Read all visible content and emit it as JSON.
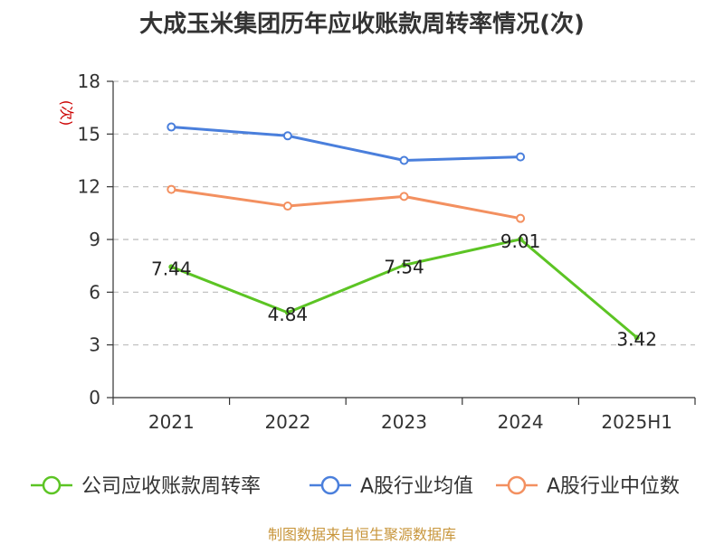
{
  "chart_data": {
    "type": "line",
    "title": "大成玉米集团历年应收账款周转率情况(次)",
    "ylabel": "(次)",
    "xlabel": "",
    "categories": [
      "2021",
      "2022",
      "2023",
      "2024",
      "2025H1"
    ],
    "ylim": [
      0,
      18
    ],
    "yticks": [
      0,
      3,
      6,
      9,
      12,
      15,
      18
    ],
    "grid": true,
    "legend_position": "bottom",
    "series": [
      {
        "name": "公司应收账款周转率",
        "color": "#5cc424",
        "values": [
          7.44,
          4.84,
          7.54,
          9.01,
          3.42
        ],
        "labels": [
          "7.44",
          "4.84",
          "7.54",
          "9.01",
          "3.42"
        ]
      },
      {
        "name": "A股行业均值",
        "color": "#4a7fdc",
        "values": [
          15.4,
          14.9,
          13.5,
          13.7,
          null
        ]
      },
      {
        "name": "A股行业中位数",
        "color": "#f39060",
        "values": [
          11.85,
          10.9,
          11.45,
          10.2,
          null
        ]
      }
    ]
  },
  "source": "制图数据来自恒生聚源数据库"
}
